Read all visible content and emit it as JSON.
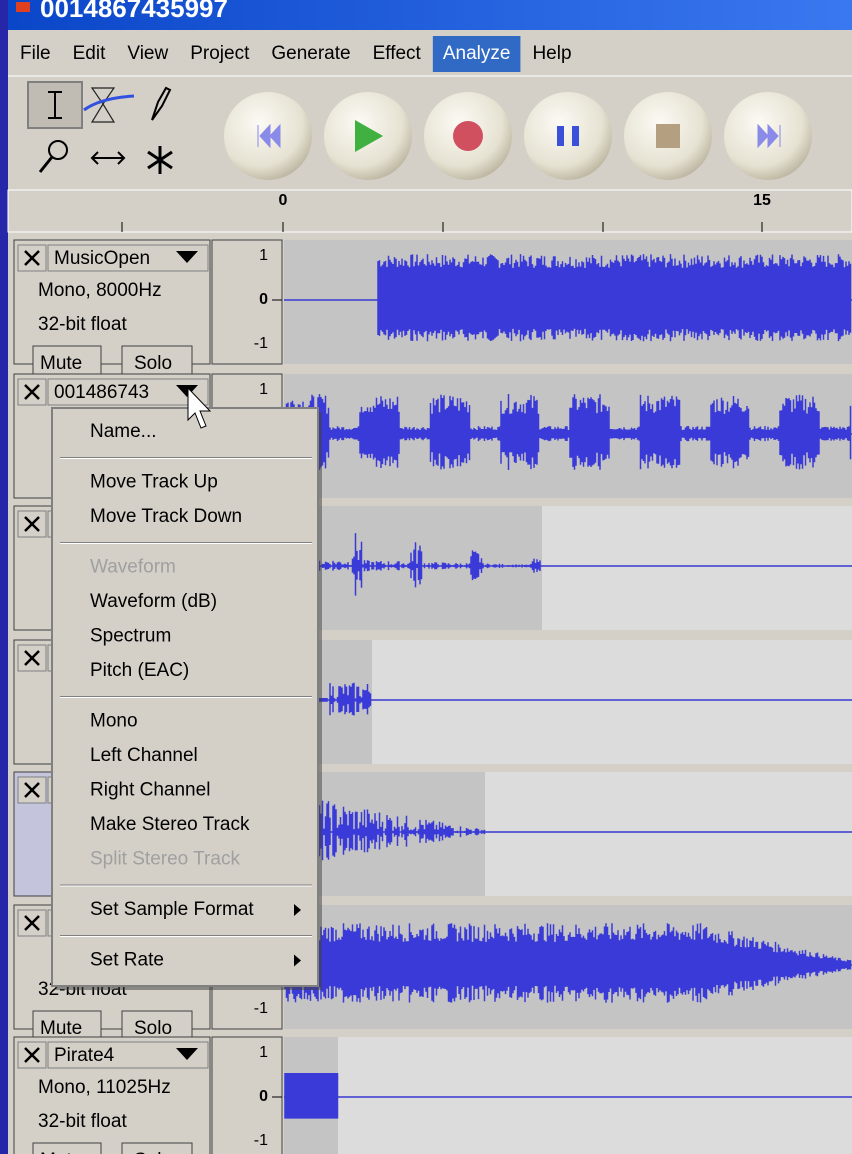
{
  "window": {
    "title": "0014867435997"
  },
  "menubar": [
    "File",
    "Edit",
    "View",
    "Project",
    "Generate",
    "Effect",
    "Analyze",
    "Help"
  ],
  "menubar_active": 6,
  "ruler_labels": [
    0,
    15
  ],
  "tracks": [
    {
      "name": "MusicOpen",
      "rate": "Mono, 8000Hz",
      "format": "32-bit float",
      "mute": "Mute",
      "solo": "Solo",
      "scale": {
        "max": 1,
        "zero": 0,
        "min": -1
      }
    },
    {
      "name": "001486743",
      "scale": {
        "max": 1
      }
    },
    {},
    {},
    {},
    {
      "format": "32-bit float",
      "mute": "Mute",
      "solo": "Solo",
      "scale": {
        "min": -1
      }
    },
    {
      "name": "Pirate4",
      "rate": "Mono, 11025Hz",
      "format": "32-bit float",
      "mute": "Mute",
      "solo": "Solo",
      "scale": {
        "max": 1,
        "zero": 0,
        "min": -1
      }
    }
  ],
  "context_menu": [
    [
      {
        "label": "Name..."
      }
    ],
    [
      {
        "label": "Move Track Up"
      },
      {
        "label": "Move Track Down"
      }
    ],
    [
      {
        "label": "Waveform",
        "disabled": true
      },
      {
        "label": "Waveform (dB)"
      },
      {
        "label": "Spectrum"
      },
      {
        "label": "Pitch (EAC)"
      }
    ],
    [
      {
        "label": "Mono"
      },
      {
        "label": "Left Channel"
      },
      {
        "label": "Right Channel"
      },
      {
        "label": "Make Stereo Track"
      },
      {
        "label": "Split Stereo Track",
        "disabled": true
      }
    ],
    [
      {
        "label": "Set Sample Format",
        "submenu": true
      }
    ],
    [
      {
        "label": "Set Rate",
        "submenu": true
      }
    ]
  ]
}
